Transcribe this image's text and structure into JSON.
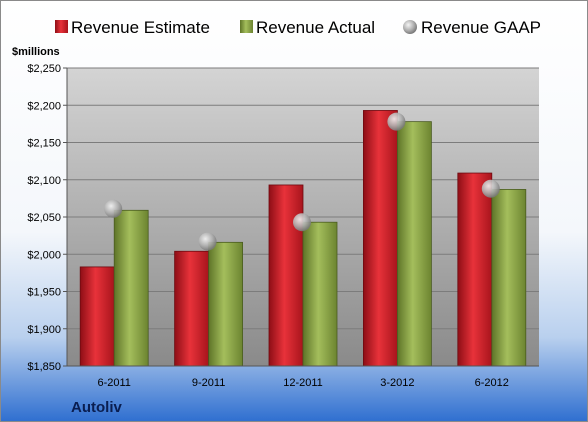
{
  "company": "Autoliv",
  "chart_data": {
    "type": "bar",
    "unit_label": "$millions",
    "categories": [
      "6-2011",
      "9-2011",
      "12-2011",
      "3-2012",
      "6-2012"
    ],
    "series": [
      {
        "name": "Revenue Estimate",
        "kind": "bar",
        "color": "#d0202a",
        "values": [
          1983,
          2004,
          2093,
          2193,
          2109
        ]
      },
      {
        "name": "Revenue Actual",
        "kind": "bar",
        "color": "#8aa248",
        "values": [
          2059,
          2016,
          2043,
          2178,
          2087
        ]
      },
      {
        "name": "Revenue GAAP",
        "kind": "marker",
        "color": "#a8a8a8",
        "values": [
          2061,
          2017,
          2043,
          2178,
          2088
        ]
      }
    ],
    "ylim": [
      1850,
      2250
    ],
    "y_ticks": [
      1850,
      1900,
      1950,
      2000,
      2050,
      2100,
      2150,
      2200,
      2250
    ],
    "y_tick_labels": [
      "$1,850",
      "$1,900",
      "$1,950",
      "$2,000",
      "$2,050",
      "$2,100",
      "$2,150",
      "$2,200",
      "$2,250"
    ],
    "grid": true,
    "legend_position": "top"
  }
}
